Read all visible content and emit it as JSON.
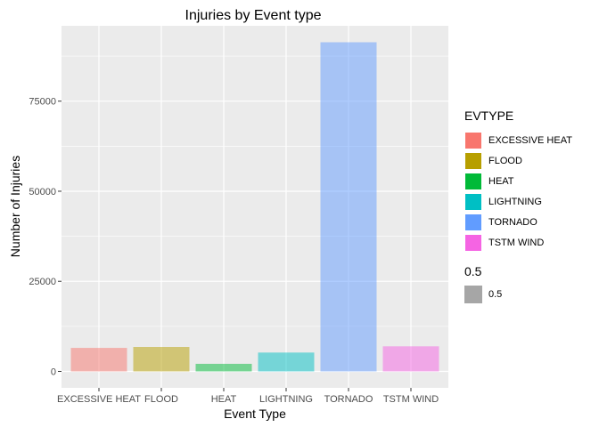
{
  "chart_data": {
    "type": "bar",
    "title": "Injuries by Event type",
    "xlabel": "Event Type",
    "ylabel": "Number of Injuries",
    "categories": [
      "EXCESSIVE HEAT",
      "FLOOD",
      "HEAT",
      "LIGHTNING",
      "TORNADO",
      "TSTM WIND"
    ],
    "values": [
      6525,
      6789,
      2100,
      5230,
      91346,
      6957
    ],
    "colors": [
      "#F8766D",
      "#B79F00",
      "#00BA38",
      "#00BFC4",
      "#619CFF",
      "#F564E3"
    ],
    "bar_alpha": 0.5,
    "yticks": [
      0,
      25000,
      50000,
      75000
    ],
    "ytick_labels": [
      "0",
      "25000",
      "50000",
      "75000"
    ],
    "ylim": [
      -4567,
      95913
    ],
    "grid": true,
    "background": "#EBEBEB"
  },
  "legend": {
    "title": "EVTYPE",
    "items": [
      "EXCESSIVE HEAT",
      "FLOOD",
      "HEAT",
      "LIGHTNING",
      "TORNADO",
      "TSTM WIND"
    ]
  },
  "alpha_legend": {
    "title": "0.5",
    "label": "0.5"
  }
}
